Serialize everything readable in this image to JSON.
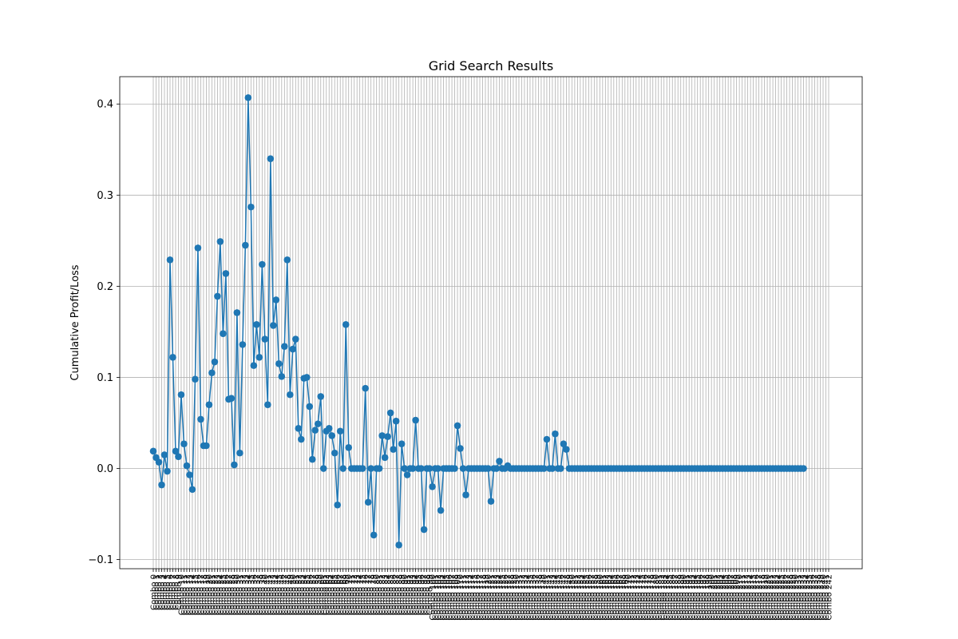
{
  "chart_data": {
    "type": "line",
    "title": "Grid Search Results",
    "xlabel": "",
    "ylabel": "Cumulative Profit/Loss",
    "x_label_prefix": "Combo ",
    "x_count": 243,
    "yticks": [
      -0.1,
      0.0,
      0.1,
      0.2,
      0.3,
      0.4
    ],
    "ylim": [
      -0.11,
      0.43
    ],
    "grid": true,
    "marker": "circle",
    "color": "#1f77b4",
    "values": [
      0.019,
      0.012,
      0.007,
      -0.018,
      0.015,
      -0.003,
      0.229,
      0.122,
      0.019,
      0.013,
      0.081,
      0.027,
      0.003,
      -0.007,
      -0.023,
      0.098,
      0.242,
      0.054,
      0.025,
      0.025,
      0.07,
      0.105,
      0.117,
      0.189,
      0.249,
      0.148,
      0.214,
      0.076,
      0.077,
      0.004,
      0.171,
      0.017,
      0.136,
      0.245,
      0.407,
      0.287,
      0.113,
      0.158,
      0.122,
      0.224,
      0.142,
      0.07,
      0.34,
      0.157,
      0.185,
      0.115,
      0.101,
      0.134,
      0.229,
      0.081,
      0.131,
      0.142,
      0.044,
      0.032,
      0.099,
      0.1,
      0.068,
      0.01,
      0.042,
      0.049,
      0.079,
      0.0,
      0.041,
      0.044,
      0.036,
      0.017,
      -0.04,
      0.041,
      0.0,
      0.158,
      0.023,
      0.0,
      0.0,
      0.0,
      0.0,
      0.0,
      0.088,
      -0.037,
      0.0,
      -0.073,
      0.0,
      0.0,
      0.036,
      0.012,
      0.035,
      0.061,
      0.021,
      0.052,
      -0.084,
      0.027,
      0.0,
      -0.007,
      0.0,
      0.0,
      0.053,
      0.0,
      0.0,
      -0.067,
      0.0,
      0.0,
      -0.02,
      0.0,
      0.0,
      -0.046,
      0.0,
      0.0,
      0.0,
      0.0,
      0.0,
      0.047,
      0.022,
      0.0,
      -0.029,
      0.0,
      0.0,
      0.0,
      0.0,
      0.0,
      0.0,
      0.0,
      0.0,
      -0.036,
      0.0,
      0.0,
      0.008,
      0.0,
      0.0,
      0.003,
      0.0,
      0.0,
      0.0,
      0.0,
      0.0,
      0.0,
      0.0,
      0.0,
      0.0,
      0.0,
      0.0,
      0.0,
      0.0,
      0.032,
      0.0,
      0.0,
      0.038,
      0.0,
      0.0,
      0.027,
      0.021,
      0.0,
      0.0,
      0.0,
      0.0,
      0.0,
      0.0,
      0.0,
      0.0,
      0.0,
      0.0,
      0.0,
      0.0,
      0.0,
      0.0,
      0.0,
      0.0,
      0.0,
      0.0,
      0.0,
      0.0,
      0.0,
      0.0,
      0.0,
      0.0,
      0.0,
      0.0,
      0.0,
      0.0,
      0.0,
      0.0,
      0.0,
      0.0,
      0.0,
      0.0,
      0.0,
      0.0,
      0.0,
      0.0,
      0.0,
      0.0,
      0.0,
      0.0,
      0.0,
      0.0,
      0.0,
      0.0,
      0.0,
      0.0,
      0.0,
      0.0,
      0.0,
      0.0,
      0.0,
      0.0,
      0.0,
      0.0,
      0.0,
      0.0,
      0.0,
      0.0,
      0.0,
      0.0,
      0.0,
      0.0,
      0.0,
      0.0,
      0.0,
      0.0,
      0.0,
      0.0,
      0.0,
      0.0,
      0.0,
      0.0,
      0.0,
      0.0,
      0.0,
      0.0,
      0.0,
      0.0,
      0.0,
      0.0,
      0.0,
      0.0,
      0.0
    ]
  }
}
